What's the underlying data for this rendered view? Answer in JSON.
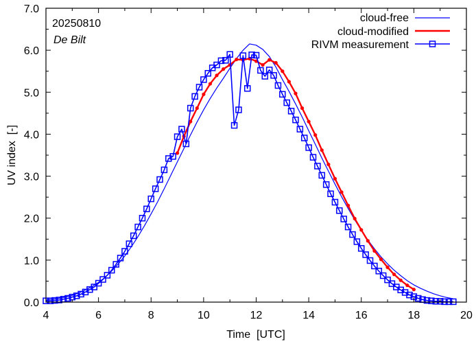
{
  "chart_data": {
    "type": "line",
    "title": "",
    "xlabel": "Time  [UTC]",
    "ylabel": "UV index  [-]",
    "xlim": [
      4,
      20
    ],
    "ylim": [
      0,
      7
    ],
    "x_ticks": [
      4,
      6,
      8,
      10,
      12,
      14,
      16,
      18,
      20
    ],
    "x_tick_labels": [
      "4",
      "6",
      "8",
      "10",
      "12",
      "14",
      "16",
      "18",
      "20"
    ],
    "y_ticks": [
      0,
      1,
      2,
      3,
      4,
      5,
      6,
      7
    ],
    "y_tick_labels": [
      "0.0",
      "1.0",
      "2.0",
      "3.0",
      "4.0",
      "5.0",
      "6.0",
      "7.0"
    ],
    "grid": false,
    "legend_position": "top-right",
    "annotations": [
      {
        "text": "20250810",
        "style": "normal",
        "position": "top-left"
      },
      {
        "text": "De Bilt",
        "style": "italic",
        "position": "top-left"
      }
    ],
    "series": [
      {
        "name": "cloud-free",
        "color": "#0000ff",
        "style": "line",
        "x": [
          4.0,
          4.25,
          4.5,
          4.75,
          5.0,
          5.25,
          5.5,
          5.75,
          6.0,
          6.25,
          6.5,
          6.75,
          7.0,
          7.25,
          7.5,
          7.75,
          8.0,
          8.25,
          8.5,
          8.75,
          9.0,
          9.25,
          9.5,
          9.75,
          10.0,
          10.25,
          10.5,
          10.75,
          11.0,
          11.25,
          11.5,
          11.75,
          12.0,
          12.25,
          12.5,
          12.75,
          13.0,
          13.25,
          13.5,
          13.75,
          14.0,
          14.25,
          14.5,
          14.75,
          15.0,
          15.25,
          15.5,
          15.75,
          16.0,
          16.25,
          16.5,
          16.75,
          17.0,
          17.25,
          17.5,
          17.75,
          18.0,
          18.25,
          18.5,
          18.75,
          19.0,
          19.25,
          19.5
        ],
        "values": [
          0.05,
          0.07,
          0.09,
          0.12,
          0.16,
          0.22,
          0.29,
          0.37,
          0.47,
          0.59,
          0.74,
          0.91,
          1.1,
          1.32,
          1.56,
          1.82,
          2.1,
          2.39,
          2.7,
          3.02,
          3.34,
          3.66,
          3.98,
          4.29,
          4.58,
          4.85,
          5.1,
          5.33,
          5.57,
          5.8,
          6.0,
          6.15,
          6.12,
          6.02,
          5.85,
          5.6,
          5.3,
          5.02,
          4.72,
          4.41,
          4.08,
          3.76,
          3.43,
          3.12,
          2.81,
          2.51,
          2.23,
          1.96,
          1.71,
          1.48,
          1.27,
          1.08,
          0.91,
          0.76,
          0.63,
          0.51,
          0.41,
          0.33,
          0.26,
          0.2,
          0.15,
          0.11,
          0.08
        ]
      },
      {
        "name": "cloud-modified",
        "color": "#ff0000",
        "style": "line-with-dots",
        "x": [
          9.0,
          9.25,
          9.5,
          9.75,
          10.0,
          10.25,
          10.5,
          10.75,
          11.0,
          11.25,
          11.5,
          11.75,
          12.0,
          12.25,
          12.5,
          12.75,
          13.0,
          13.25,
          13.5,
          13.75,
          14.0,
          14.25,
          14.5,
          14.75,
          15.0,
          15.25,
          15.5,
          15.75,
          16.0,
          16.25,
          16.5,
          16.75,
          17.0,
          17.25,
          17.5,
          17.75,
          18.0
        ],
        "values": [
          3.55,
          3.95,
          4.3,
          4.62,
          4.95,
          5.2,
          5.4,
          5.55,
          5.65,
          5.78,
          5.77,
          5.8,
          5.74,
          5.65,
          5.77,
          5.7,
          5.5,
          5.25,
          4.97,
          4.62,
          4.3,
          3.98,
          3.62,
          3.28,
          2.94,
          2.62,
          2.3,
          1.99,
          1.72,
          1.46,
          1.22,
          1.02,
          0.83,
          0.66,
          0.52,
          0.4,
          0.3
        ]
      },
      {
        "name": "RIVM measurement",
        "color": "#0000ff",
        "style": "line-with-squares",
        "x": [
          4.0,
          4.1667,
          4.3333,
          4.5,
          4.6667,
          4.8333,
          5.0,
          5.1667,
          5.3333,
          5.5,
          5.6667,
          5.8333,
          6.0,
          6.1667,
          6.3333,
          6.5,
          6.6667,
          6.8333,
          7.0,
          7.1667,
          7.3333,
          7.5,
          7.6667,
          7.8333,
          8.0,
          8.1667,
          8.3333,
          8.5,
          8.6667,
          8.8333,
          9.0,
          9.1667,
          9.3333,
          9.5,
          9.6667,
          9.8333,
          10.0,
          10.1667,
          10.3333,
          10.5,
          10.6667,
          10.8333,
          11.0,
          11.1667,
          11.3333,
          11.5,
          11.6667,
          11.8333,
          12.0,
          12.1667,
          12.3333,
          12.5,
          12.6667,
          12.8333,
          13.0,
          13.1667,
          13.3333,
          13.5,
          13.6667,
          13.8333,
          14.0,
          14.1667,
          14.3333,
          14.5,
          14.6667,
          14.8333,
          15.0,
          15.1667,
          15.3333,
          15.5,
          15.6667,
          15.8333,
          16.0,
          16.1667,
          16.3333,
          16.5,
          16.6667,
          16.8333,
          17.0,
          17.1667,
          17.3333,
          17.5,
          17.6667,
          17.8333,
          18.0,
          18.1667,
          18.3333,
          18.5,
          18.6667,
          18.8333,
          19.0,
          19.1667,
          19.3333,
          19.5
        ],
        "values": [
          0.03,
          0.03,
          0.04,
          0.05,
          0.07,
          0.09,
          0.12,
          0.15,
          0.19,
          0.24,
          0.3,
          0.36,
          0.45,
          0.54,
          0.64,
          0.76,
          0.9,
          1.05,
          1.21,
          1.39,
          1.58,
          1.79,
          2.0,
          2.22,
          2.46,
          2.7,
          2.92,
          3.15,
          3.42,
          3.47,
          3.94,
          4.12,
          3.77,
          4.62,
          4.9,
          5.12,
          5.3,
          5.45,
          5.58,
          5.65,
          5.75,
          5.76,
          5.9,
          4.21,
          4.58,
          5.87,
          5.09,
          5.89,
          5.88,
          5.52,
          5.38,
          5.53,
          5.4,
          5.16,
          4.95,
          4.75,
          4.55,
          4.34,
          4.12,
          3.91,
          3.68,
          3.45,
          3.24,
          3.02,
          2.8,
          2.58,
          2.38,
          2.18,
          1.98,
          1.79,
          1.61,
          1.44,
          1.28,
          1.13,
          0.99,
          0.86,
          0.74,
          0.63,
          0.53,
          0.44,
          0.36,
          0.29,
          0.23,
          0.17,
          0.13,
          0.09,
          0.06,
          0.04,
          0.03,
          0.02,
          0.02,
          0.01,
          0.01,
          0.01
        ]
      }
    ]
  }
}
